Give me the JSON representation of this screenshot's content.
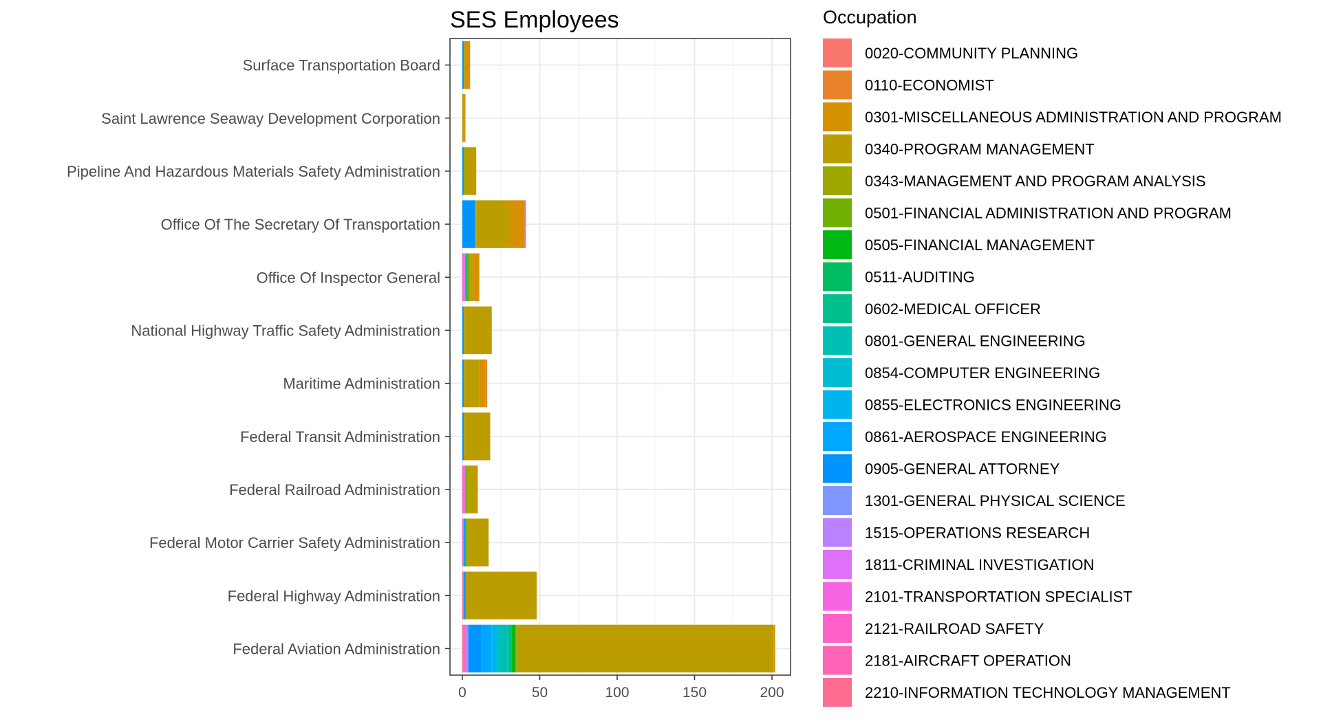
{
  "chart_data": {
    "type": "bar",
    "orientation": "horizontal",
    "stacked": true,
    "title": "SES Employees",
    "xlabel": "",
    "ylabel": "",
    "xlim": [
      -10,
      210
    ],
    "x_ticks": [
      0,
      50,
      100,
      150,
      200
    ],
    "x_tick_labels": [
      "0",
      "50",
      "100",
      "150",
      "200"
    ],
    "grid": true,
    "legend_placement": "right",
    "legend_title": "Occupation",
    "categories": [
      "Surface Transportation Board",
      "Saint Lawrence Seaway Development Corporation",
      "Pipeline And Hazardous Materials Safety Administration",
      "Office Of The Secretary Of Transportation",
      "Office Of Inspector General",
      "National Highway Traffic Safety Administration",
      "Maritime Administration",
      "Federal Transit Administration",
      "Federal Railroad Administration",
      "Federal Motor Carrier Safety Administration",
      "Federal Highway Administration",
      "Federal Aviation Administration"
    ],
    "series": [
      {
        "name": "0020-COMMUNITY PLANNING",
        "color": "#F8766D",
        "values": [
          0,
          0,
          0,
          1,
          0,
          0,
          0,
          0,
          0,
          0,
          0,
          0
        ]
      },
      {
        "name": "0110-ECONOMIST",
        "color": "#E9842C",
        "values": [
          1,
          0,
          0,
          0,
          0,
          0,
          1,
          0,
          0,
          0,
          0,
          0
        ]
      },
      {
        "name": "0301-MISCELLANEOUS ADMINISTRATION AND PROGRAM",
        "color": "#D69100",
        "values": [
          2,
          1,
          0,
          10,
          4,
          0,
          4,
          0,
          0,
          0,
          0,
          1
        ]
      },
      {
        "name": "0340-PROGRAM MANAGEMENT",
        "color": "#BC9D00",
        "values": [
          1,
          1,
          7,
          21,
          2,
          18,
          10,
          17,
          6,
          14,
          46,
          166
        ]
      },
      {
        "name": "0343-MANAGEMENT AND PROGRAM ANALYSIS",
        "color": "#9CA700",
        "values": [
          0,
          0,
          1,
          1,
          1,
          0,
          0,
          0,
          1,
          0,
          0,
          0
        ]
      },
      {
        "name": "0501-FINANCIAL ADMINISTRATION AND PROGRAM",
        "color": "#6FB000",
        "values": [
          0,
          0,
          0,
          0,
          1,
          0,
          0,
          0,
          1,
          1,
          0,
          1
        ]
      },
      {
        "name": "0505-FINANCIAL MANAGEMENT",
        "color": "#00B813",
        "values": [
          0,
          0,
          0,
          0,
          0,
          0,
          0,
          0,
          0,
          0,
          0,
          2
        ]
      },
      {
        "name": "0511-AUDITING",
        "color": "#00BD61",
        "values": [
          0,
          0,
          0,
          0,
          1,
          0,
          0,
          0,
          0,
          0,
          0,
          0
        ]
      },
      {
        "name": "0602-MEDICAL OFFICER",
        "color": "#00C08E",
        "values": [
          0,
          0,
          0,
          0,
          0,
          0,
          0,
          0,
          0,
          0,
          0,
          3
        ]
      },
      {
        "name": "0801-GENERAL ENGINEERING",
        "color": "#00C0B4",
        "values": [
          0,
          0,
          0,
          0,
          0,
          0,
          0,
          0,
          0,
          0,
          0,
          5
        ]
      },
      {
        "name": "0854-COMPUTER ENGINEERING",
        "color": "#00BDD4",
        "values": [
          0,
          0,
          0,
          0,
          0,
          0,
          0,
          0,
          0,
          0,
          0,
          2
        ]
      },
      {
        "name": "0855-ELECTRONICS ENGINEERING",
        "color": "#00B5EE",
        "values": [
          0,
          0,
          0,
          0,
          0,
          0,
          0,
          0,
          0,
          0,
          0,
          3
        ]
      },
      {
        "name": "0861-AEROSPACE ENGINEERING",
        "color": "#00A7FF",
        "values": [
          0,
          0,
          0,
          0,
          0,
          0,
          0,
          0,
          0,
          0,
          0,
          7
        ]
      },
      {
        "name": "0905-GENERAL ATTORNEY",
        "color": "#0094FF",
        "values": [
          1,
          0,
          1,
          8,
          0,
          1,
          1,
          1,
          0,
          1,
          1,
          8
        ]
      },
      {
        "name": "1301-GENERAL PHYSICAL SCIENCE",
        "color": "#7F96FF",
        "values": [
          0,
          0,
          0,
          0,
          0,
          0,
          0,
          0,
          0,
          0,
          0,
          1
        ]
      },
      {
        "name": "1515-OPERATIONS RESEARCH",
        "color": "#BB81FF",
        "values": [
          0,
          0,
          0,
          0,
          0,
          0,
          0,
          0,
          0,
          0,
          0,
          1
        ]
      },
      {
        "name": "1811-CRIMINAL INVESTIGATION",
        "color": "#DF70F8",
        "values": [
          0,
          0,
          0,
          0,
          1,
          0,
          0,
          0,
          0,
          0,
          0,
          0
        ]
      },
      {
        "name": "2101-TRANSPORTATION SPECIALIST",
        "color": "#F564E3",
        "values": [
          0,
          0,
          0,
          0,
          1,
          0,
          0,
          0,
          1,
          1,
          0,
          0
        ]
      },
      {
        "name": "2121-RAILROAD SAFETY",
        "color": "#FF61C9",
        "values": [
          0,
          0,
          0,
          0,
          0,
          0,
          0,
          0,
          1,
          0,
          0,
          0
        ]
      },
      {
        "name": "2181-AIRCRAFT OPERATION",
        "color": "#FF63B6",
        "values": [
          0,
          0,
          0,
          0,
          0,
          0,
          0,
          0,
          0,
          0,
          0,
          1
        ]
      },
      {
        "name": "2210-INFORMATION TECHNOLOGY MANAGEMENT",
        "color": "#FF6C91",
        "values": [
          0,
          0,
          0,
          0,
          0,
          0,
          0,
          0,
          0,
          0,
          1,
          1
        ]
      }
    ]
  }
}
